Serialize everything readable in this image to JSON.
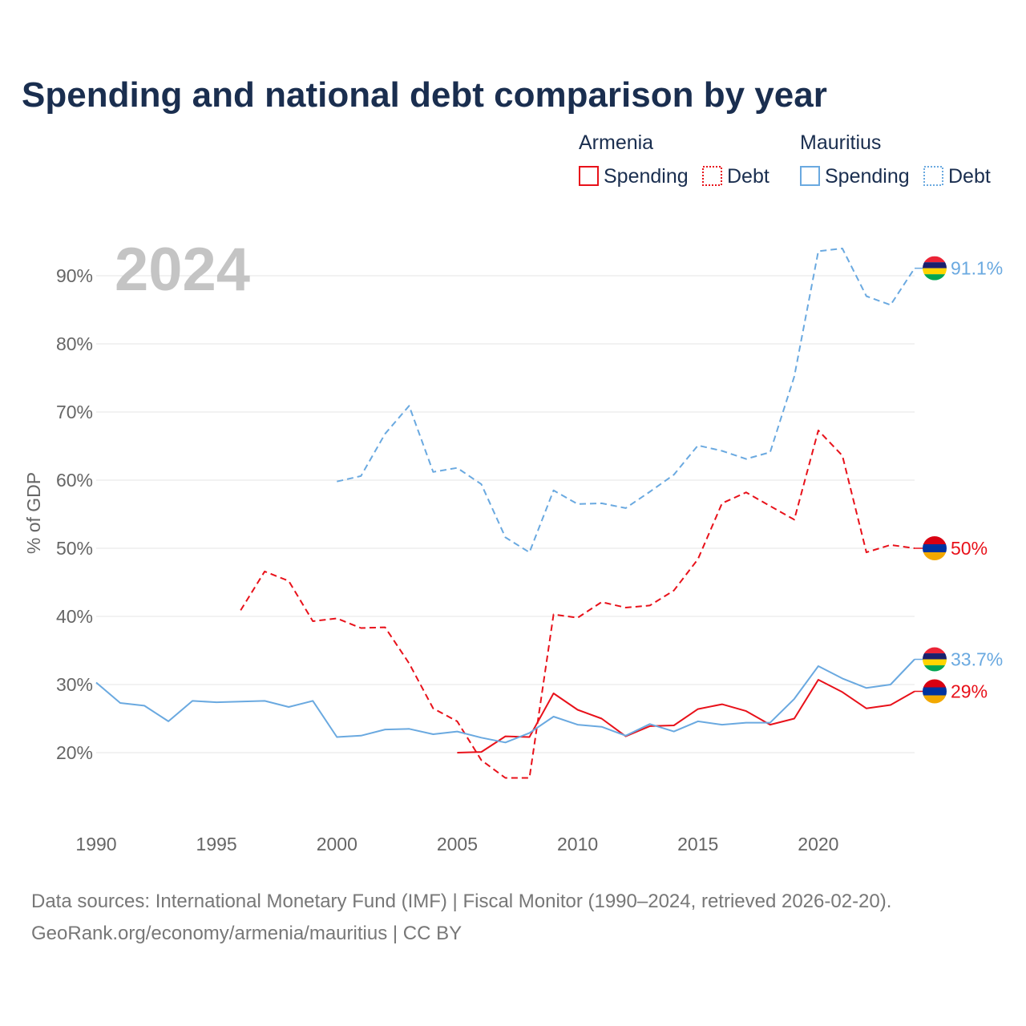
{
  "title": "Spending and national debt comparison by year",
  "year_label": "2024",
  "colors": {
    "armenia": "#e8111a",
    "mauritius": "#6aa9e0"
  },
  "legend": {
    "armenia": {
      "name": "Armenia",
      "spending": "Spending",
      "debt": "Debt"
    },
    "mauritius": {
      "name": "Mauritius",
      "spending": "Spending",
      "debt": "Debt"
    }
  },
  "chart_data": {
    "type": "line",
    "ylabel": "% of GDP",
    "xlabel": "",
    "xlim": [
      1990,
      2024
    ],
    "ylim": [
      10,
      95
    ],
    "x_ticks": [
      "1990",
      "1995",
      "2000",
      "2005",
      "2010",
      "2015",
      "2020"
    ],
    "y_ticks": [
      "20%",
      "30%",
      "40%",
      "50%",
      "60%",
      "70%",
      "80%",
      "90%"
    ],
    "series": [
      {
        "name": "Armenia Spending",
        "country": "armenia",
        "style": "solid",
        "x": [
          2005,
          2006,
          2007,
          2008,
          2009,
          2010,
          2011,
          2012,
          2013,
          2014,
          2015,
          2016,
          2017,
          2018,
          2019,
          2020,
          2021,
          2022,
          2023,
          2024
        ],
        "values": [
          20.0,
          20.1,
          22.4,
          22.3,
          28.7,
          26.3,
          25.0,
          22.4,
          23.9,
          24.0,
          26.4,
          27.1,
          26.1,
          24.1,
          25.0,
          30.7,
          28.9,
          26.5,
          27.0,
          29.0
        ],
        "end_label": "29%"
      },
      {
        "name": "Armenia Debt",
        "country": "armenia",
        "style": "dashed",
        "x": [
          1996,
          1997,
          1998,
          1999,
          2000,
          2001,
          2002,
          2003,
          2004,
          2005,
          2006,
          2007,
          2008,
          2009,
          2010,
          2011,
          2012,
          2013,
          2014,
          2015,
          2016,
          2017,
          2018,
          2019,
          2020,
          2021,
          2022,
          2023,
          2024
        ],
        "values": [
          40.9,
          46.6,
          45.2,
          39.3,
          39.7,
          38.3,
          38.4,
          33.1,
          26.5,
          24.6,
          18.9,
          16.3,
          16.3,
          40.3,
          39.8,
          42.1,
          41.3,
          41.6,
          43.8,
          48.4,
          56.6,
          58.2,
          56.2,
          54.2,
          67.3,
          63.6,
          49.4,
          50.5,
          50.0
        ],
        "end_label": "50%"
      },
      {
        "name": "Mauritius Spending",
        "country": "mauritius",
        "style": "solid",
        "x": [
          1990,
          1991,
          1992,
          1993,
          1994,
          1995,
          1996,
          1997,
          1998,
          1999,
          2000,
          2001,
          2002,
          2003,
          2004,
          2005,
          2006,
          2007,
          2008,
          2009,
          2010,
          2011,
          2012,
          2013,
          2014,
          2015,
          2016,
          2017,
          2018,
          2019,
          2020,
          2021,
          2022,
          2023,
          2024
        ],
        "values": [
          30.3,
          27.3,
          26.9,
          24.6,
          27.6,
          27.4,
          27.5,
          27.6,
          26.7,
          27.6,
          22.3,
          22.5,
          23.4,
          23.5,
          22.7,
          23.1,
          22.2,
          21.5,
          22.9,
          25.3,
          24.1,
          23.8,
          22.5,
          24.2,
          23.1,
          24.6,
          24.1,
          24.4,
          24.4,
          27.9,
          32.7,
          30.9,
          29.5,
          30.0,
          33.7
        ],
        "end_label": "33.7%"
      },
      {
        "name": "Mauritius Debt",
        "country": "mauritius",
        "style": "dashed",
        "x": [
          2000,
          2001,
          2002,
          2003,
          2004,
          2005,
          2006,
          2007,
          2008,
          2009,
          2010,
          2011,
          2012,
          2013,
          2014,
          2015,
          2016,
          2017,
          2018,
          2019,
          2020,
          2021,
          2022,
          2023,
          2024
        ],
        "values": [
          59.8,
          60.6,
          66.8,
          70.9,
          61.2,
          61.8,
          59.4,
          51.6,
          49.4,
          58.5,
          56.5,
          56.6,
          55.9,
          58.3,
          60.8,
          65.1,
          64.3,
          63.1,
          64.1,
          75.2,
          93.6,
          94.0,
          87.0,
          85.7,
          91.1
        ],
        "end_label": "91.1%"
      }
    ]
  },
  "footer": {
    "line1": "Data sources: International Monetary Fund (IMF) | Fiscal Monitor (1990–2024, retrieved 2026-02-20).",
    "line2": "GeoRank.org/economy/armenia/mauritius | CC BY"
  }
}
